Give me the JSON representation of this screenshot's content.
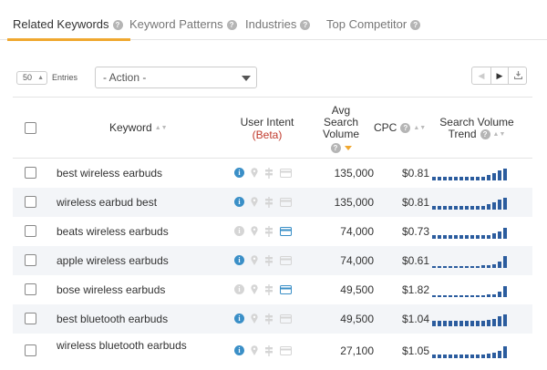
{
  "tabs": [
    {
      "label": "Related Keywords",
      "active": true
    },
    {
      "label": "Keyword Patterns",
      "active": false
    },
    {
      "label": "Industries",
      "active": false
    },
    {
      "label": "Top Competitor",
      "active": false
    }
  ],
  "controls": {
    "entries_value": "50",
    "entries_label": "Entries",
    "action_value": "- Action -"
  },
  "header": {
    "keyword": "Keyword",
    "intent_line1": "User Intent",
    "intent_line2": "(Beta)",
    "avg_line1": "Avg",
    "avg_line2": "Search",
    "avg_line3": "Volume",
    "cpc": "CPC",
    "trend_line1": "Search Volume",
    "trend_line2": "Trend"
  },
  "colors": {
    "accent": "#f0a830",
    "trend_bar": "#2b5c9e",
    "intent_active": "#3a8fc7",
    "intent_inactive": "#d5d5d5",
    "beta": "#c0392b"
  },
  "rows": [
    {
      "keyword": "best wireless earbuds",
      "volume": "135,000",
      "cpc": "$0.81",
      "info_active": true,
      "card_active": false,
      "trend": [
        0.3,
        0.3,
        0.3,
        0.3,
        0.3,
        0.3,
        0.3,
        0.3,
        0.3,
        0.3,
        0.45,
        0.6,
        0.75,
        0.95
      ]
    },
    {
      "keyword": "wireless earbud best",
      "volume": "135,000",
      "cpc": "$0.81",
      "info_active": true,
      "card_active": false,
      "trend": [
        0.3,
        0.3,
        0.3,
        0.3,
        0.3,
        0.3,
        0.3,
        0.3,
        0.3,
        0.3,
        0.45,
        0.6,
        0.75,
        0.95
      ]
    },
    {
      "keyword": "beats wireless earbuds",
      "volume": "74,000",
      "cpc": "$0.73",
      "info_active": false,
      "card_active": true,
      "trend": [
        0.3,
        0.3,
        0.3,
        0.3,
        0.3,
        0.3,
        0.3,
        0.3,
        0.3,
        0.3,
        0.3,
        0.45,
        0.6,
        0.85
      ]
    },
    {
      "keyword": "apple wireless earbuds",
      "volume": "74,000",
      "cpc": "$0.61",
      "info_active": true,
      "card_active": false,
      "trend": [
        0.1,
        0.1,
        0.15,
        0.15,
        0.15,
        0.15,
        0.15,
        0.15,
        0.15,
        0.2,
        0.2,
        0.25,
        0.5,
        0.95
      ]
    },
    {
      "keyword": "bose wireless earbuds",
      "volume": "49,500",
      "cpc": "$1.82",
      "info_active": false,
      "card_active": true,
      "trend": [
        0.1,
        0.1,
        0.1,
        0.1,
        0.1,
        0.1,
        0.1,
        0.1,
        0.15,
        0.15,
        0.2,
        0.2,
        0.4,
        0.85
      ]
    },
    {
      "keyword": "best bluetooth earbuds",
      "volume": "49,500",
      "cpc": "$1.04",
      "info_active": true,
      "card_active": false,
      "trend": [
        0.45,
        0.45,
        0.45,
        0.45,
        0.45,
        0.45,
        0.45,
        0.45,
        0.45,
        0.45,
        0.5,
        0.55,
        0.75,
        0.95
      ]
    },
    {
      "keyword": "wireless bluetooth earbuds",
      "volume": "27,100",
      "cpc": "$1.05",
      "info_active": true,
      "card_active": false,
      "trend": [
        0.25,
        0.25,
        0.25,
        0.25,
        0.25,
        0.25,
        0.25,
        0.25,
        0.25,
        0.3,
        0.35,
        0.4,
        0.55,
        0.9
      ]
    }
  ]
}
